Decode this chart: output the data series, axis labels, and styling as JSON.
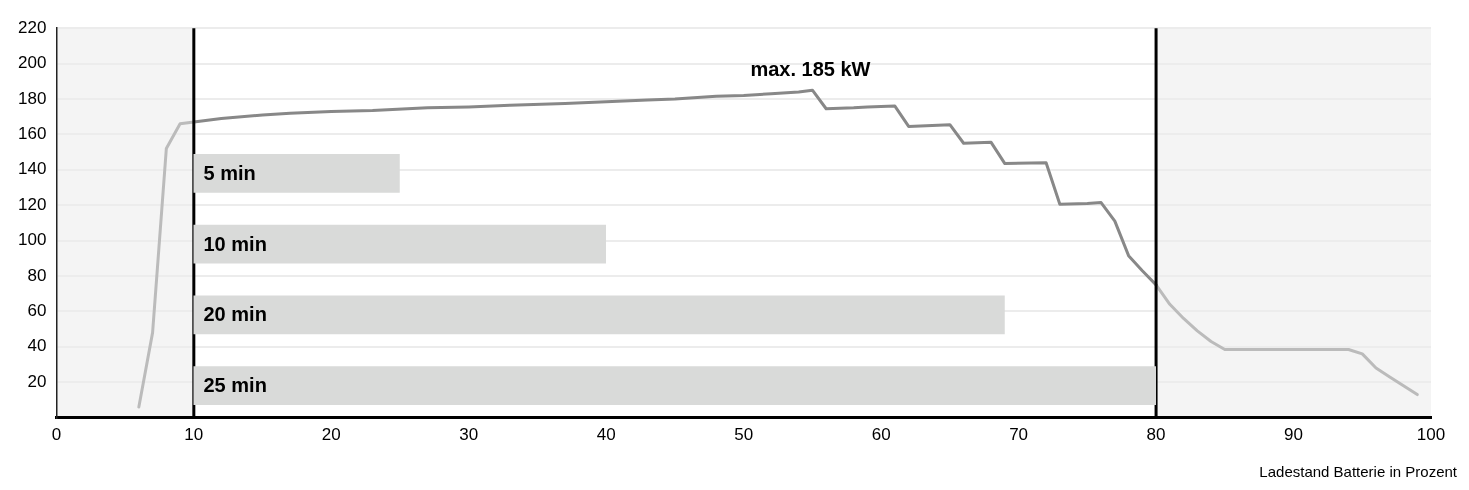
{
  "chart_data": [
    {
      "type": "line",
      "xlabel": "Ladestand Batterie in Prozent",
      "xlim": [
        0,
        100
      ],
      "xticks": [
        0,
        10,
        20,
        30,
        40,
        50,
        60,
        70,
        80,
        90,
        100
      ],
      "ylim": [
        0,
        220
      ],
      "yticks": [
        20,
        40,
        60,
        80,
        100,
        120,
        140,
        160,
        180,
        200,
        220
      ],
      "grid": "y",
      "marker": "none",
      "line_style": "solid",
      "series": [
        {
          "color": "#bbbbbb",
          "x": [
            6,
            7,
            8,
            9,
            10
          ],
          "values": [
            6,
            48,
            152,
            166,
            167
          ]
        },
        {
          "color": "#888888",
          "x": [
            10,
            12,
            15,
            17,
            20,
            23,
            27,
            30,
            33,
            37,
            40,
            43,
            45,
            48,
            50,
            52,
            54,
            55,
            56,
            58,
            59,
            61,
            62,
            65,
            66,
            68,
            69,
            72,
            73,
            75,
            76,
            77,
            78,
            79,
            80
          ],
          "values": [
            167,
            169,
            171,
            172,
            173,
            173.5,
            175,
            175.5,
            176.5,
            177.5,
            178.5,
            179.5,
            180,
            181.5,
            182,
            183,
            184,
            185,
            174.5,
            175,
            175.5,
            176,
            164.5,
            165.5,
            155,
            155.5,
            143.5,
            144,
            120.5,
            121,
            121.5,
            111,
            91.5,
            83,
            75
          ]
        },
        {
          "color": "#bbbbbb",
          "x": [
            80,
            81,
            82,
            83,
            84,
            85,
            88,
            90,
            92,
            94,
            95,
            96,
            97,
            99
          ],
          "values": [
            75,
            64,
            56,
            49,
            43,
            38.5,
            38.5,
            38.5,
            38.5,
            38.5,
            36,
            28,
            23,
            13
          ]
        }
      ],
      "bands": [
        {
          "axis": "x",
          "from": 0,
          "to": 10,
          "color": "#f4f4f4"
        },
        {
          "axis": "x",
          "from": 80,
          "to": 100,
          "color": "#f4f4f4"
        }
      ],
      "ref_lines": [
        {
          "axis": "x",
          "value": 10,
          "color": "#000000"
        },
        {
          "axis": "x",
          "value": 80,
          "color": "#000000"
        }
      ],
      "annotations": [
        {
          "text": "max. 185 kW",
          "x": 55,
          "y": 185
        }
      ]
    },
    {
      "type": "bar",
      "orientation": "horizontal",
      "categories": [
        "5 min",
        "10 min",
        "20 min",
        "25 min"
      ],
      "base": [
        10,
        10,
        10,
        10
      ],
      "values": [
        15,
        30,
        59,
        70
      ],
      "color": "#d9dad9",
      "xlim": [
        0,
        100
      ],
      "tick_labels": false
    }
  ]
}
